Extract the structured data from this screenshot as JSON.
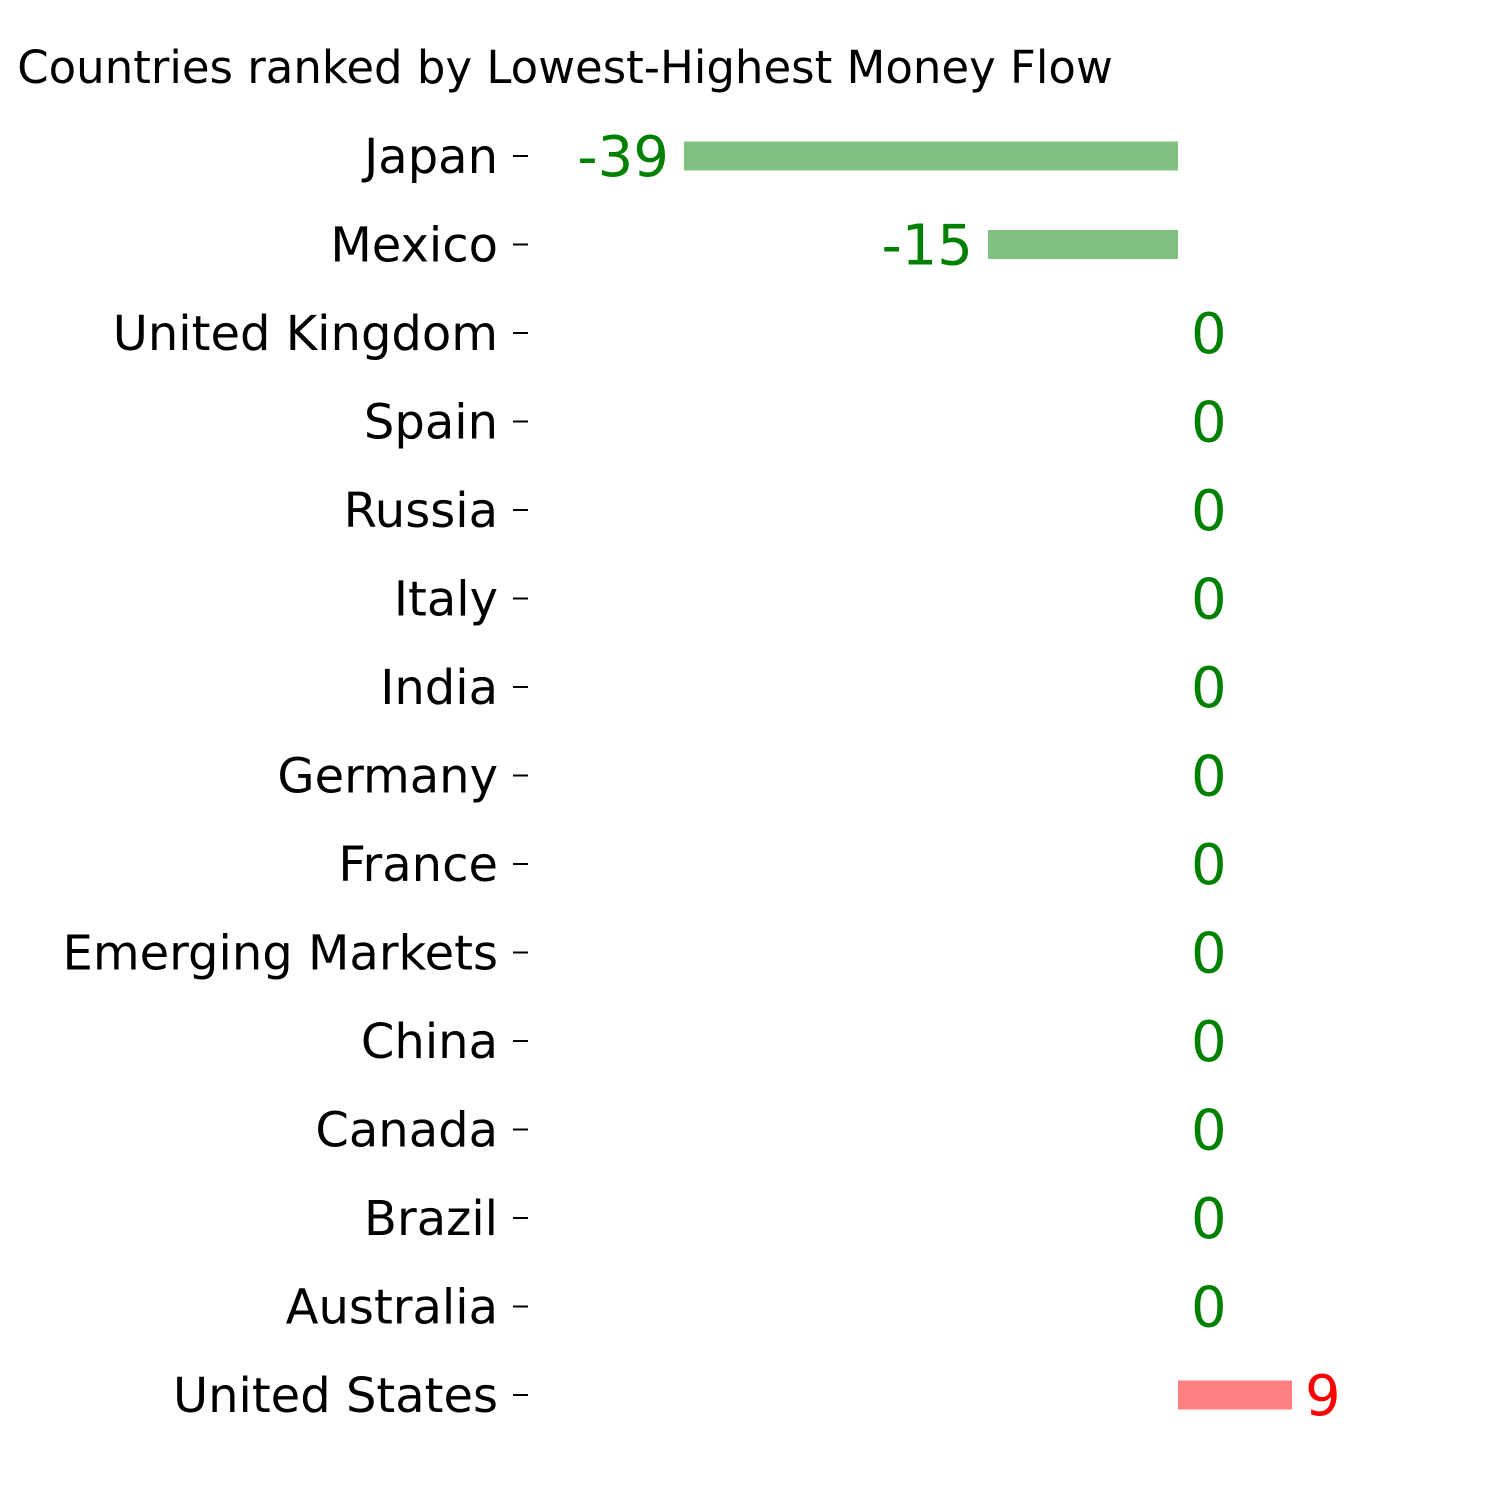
{
  "chart_data": {
    "type": "bar",
    "orientation": "horizontal",
    "title": "Countries ranked by Lowest-Highest Money Flow",
    "categories": [
      "Japan",
      "Mexico",
      "United Kingdom",
      "Spain",
      "Russia",
      "Italy",
      "India",
      "Germany",
      "France",
      "Emerging Markets",
      "China",
      "Canada",
      "Brazil",
      "Australia",
      "United States"
    ],
    "values": [
      -39,
      -15,
      0,
      0,
      0,
      0,
      0,
      0,
      0,
      0,
      0,
      0,
      0,
      0,
      9
    ],
    "xlabel": "",
    "ylabel": "",
    "grid": false,
    "colors": {
      "negative_bar": "#80c080",
      "positive_bar": "#ff8080",
      "negative_label": "#008000",
      "zero_label": "#008000",
      "positive_label": "#ff0000"
    }
  }
}
